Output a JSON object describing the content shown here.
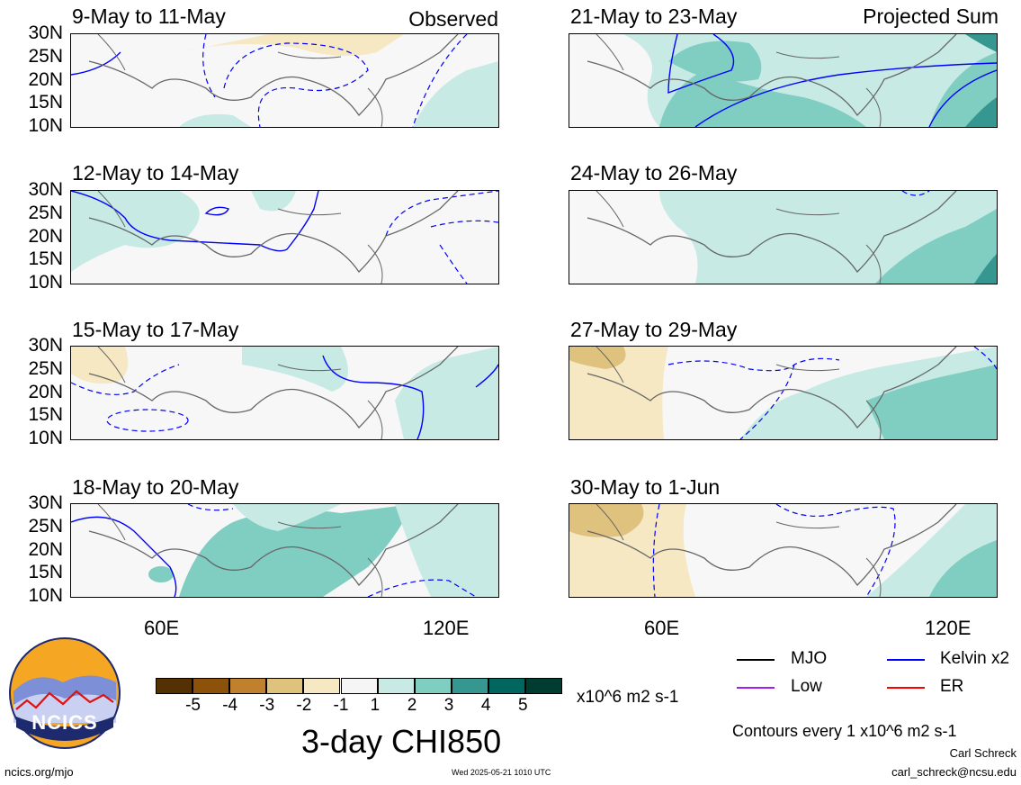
{
  "panels": [
    {
      "title": "9-May to 11-May",
      "tag": "Observed"
    },
    {
      "title": "12-May to 14-May",
      "tag": ""
    },
    {
      "title": "15-May to 17-May",
      "tag": ""
    },
    {
      "title": "18-May to 20-May",
      "tag": ""
    },
    {
      "title": "21-May to 23-May",
      "tag": "Projected Sum"
    },
    {
      "title": "24-May to 26-May",
      "tag": ""
    },
    {
      "title": "27-May to 29-May",
      "tag": ""
    },
    {
      "title": "30-May to 1-Jun",
      "tag": ""
    }
  ],
  "axes": {
    "lat_ticks": [
      "30N",
      "25N",
      "20N",
      "15N",
      "10N"
    ],
    "lon_ticks": [
      "60E",
      "120E"
    ]
  },
  "colorbar": {
    "title": "3-day CHI850",
    "units": "x10^6 m2 s-1",
    "tick_labels": [
      "-5",
      "-4",
      "-3",
      "-2",
      "-1",
      "1",
      "2",
      "3",
      "4",
      "5"
    ],
    "colors": [
      "#543005",
      "#8c510a",
      "#bf812d",
      "#dfc27d",
      "#f6e8c3",
      "#f5f5f5",
      "#c7eae5",
      "#80cdc1",
      "#35978f",
      "#01665e",
      "#003c30"
    ]
  },
  "legend": {
    "mjo": "MJO",
    "kelvin": "Kelvin x2",
    "low": "Low",
    "er": "ER",
    "contours_note": "Contours every 1 x10^6 m2 s-1",
    "colors": {
      "mjo": "#000000",
      "kelvin": "#0000ff",
      "low": "#a020f0",
      "er": "#ff0000"
    }
  },
  "footer": {
    "logo_text": "NCICS",
    "site": "ncics.org/mjo",
    "timestamp": "Wed 2025-05-21 1010 UTC",
    "author": "Carl Schreck",
    "email": "carl_schreck@ncsu.edu"
  },
  "chart_data": {
    "type": "heatmap",
    "lat_range": [
      "10N",
      "30N"
    ],
    "lon_ticks": [
      "60E",
      "120E"
    ],
    "variable": "3-day CHI850",
    "units": "x10^6 m2 s-1",
    "levels": [
      -5,
      -4,
      -3,
      -2,
      -1,
      1,
      2,
      3,
      4,
      5
    ]
  }
}
